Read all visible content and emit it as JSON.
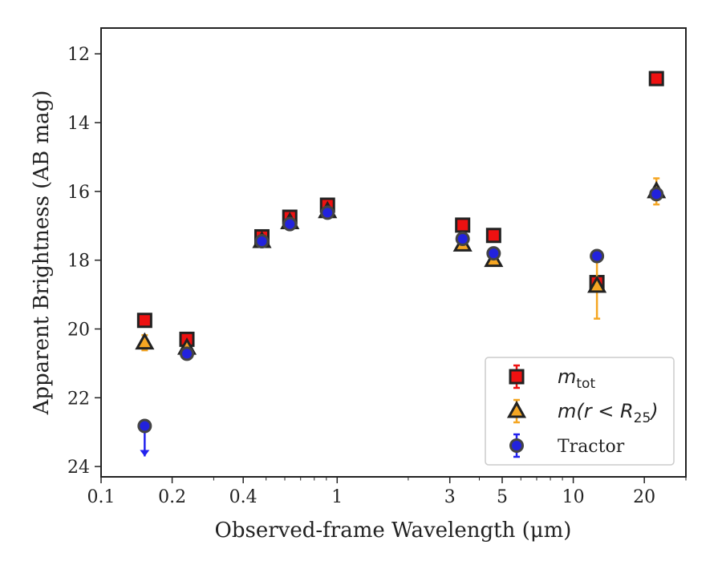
{
  "chart_data": {
    "type": "scatter",
    "title": "",
    "xlabel": "Observed-frame Wavelength (μm)",
    "ylabel": "Apparent Brightness (AB mag)",
    "xscale": "log",
    "xlim": [
      0.1,
      30
    ],
    "ylim": [
      24.3,
      11.25
    ],
    "y_inverted": true,
    "xticks": [
      0.1,
      0.2,
      0.4,
      1,
      3,
      5,
      10,
      20
    ],
    "xtick_labels": [
      "0.1",
      "0.2",
      "0.4",
      "1",
      "3",
      "5",
      "10",
      "20"
    ],
    "yticks": [
      12,
      14,
      16,
      18,
      20,
      22,
      24
    ],
    "ytick_labels": [
      "12",
      "14",
      "16",
      "18",
      "20",
      "22",
      "24"
    ],
    "grid": false,
    "legend_position": "bottom-right",
    "series": [
      {
        "name": "m_tot",
        "legend_text": "m",
        "legend_sub": "tot",
        "marker": "square",
        "face_color": "#ee1111",
        "edge_color": "#222222",
        "errorbar_color": "#ee1111",
        "points": [
          {
            "x": 0.153,
            "y": 19.75,
            "err": 0.1
          },
          {
            "x": 0.231,
            "y": 20.3,
            "err": 0.1
          },
          {
            "x": 0.48,
            "y": 17.32,
            "err": 0.1
          },
          {
            "x": 0.63,
            "y": 16.75,
            "err": 0.12
          },
          {
            "x": 0.91,
            "y": 16.4,
            "err": 0.1
          },
          {
            "x": 3.4,
            "y": 16.98,
            "err": 0.05
          },
          {
            "x": 4.6,
            "y": 17.28,
            "err": 0.05
          },
          {
            "x": 12.6,
            "y": 18.65,
            "err": 0.1
          },
          {
            "x": 22.5,
            "y": 12.72,
            "err": 0.05
          }
        ]
      },
      {
        "name": "m(r < R25)",
        "legend_text": "m(r < R",
        "legend_sub": "25",
        "legend_close": ")",
        "marker": "triangle",
        "face_color": "#f5a623",
        "edge_color": "#222222",
        "errorbar_color": "#f5a623",
        "points": [
          {
            "x": 0.153,
            "y": 20.4,
            "err": 0.22
          },
          {
            "x": 0.231,
            "y": 20.55,
            "err": 0.12
          },
          {
            "x": 0.48,
            "y": 17.45,
            "err": 0.05
          },
          {
            "x": 0.63,
            "y": 16.9,
            "err": 0.05
          },
          {
            "x": 0.91,
            "y": 16.58,
            "err": 0.05
          },
          {
            "x": 3.4,
            "y": 17.55,
            "err": 0.05
          },
          {
            "x": 4.6,
            "y": 18.0,
            "err": 0.08
          },
          {
            "x": 12.6,
            "y": 18.75,
            "err": 0.95
          },
          {
            "x": 22.5,
            "y": 16.0,
            "err": 0.38
          }
        ]
      },
      {
        "name": "Tractor",
        "legend_text": "Tractor",
        "marker": "circle",
        "face_color": "#2222dd",
        "edge_color": "#444444",
        "errorbar_color": "#2222ee",
        "points": [
          {
            "x": 0.153,
            "y": 22.82,
            "upper_limit": true
          },
          {
            "x": 0.231,
            "y": 20.72,
            "err": 0.05
          },
          {
            "x": 0.48,
            "y": 17.45,
            "err": 0.05
          },
          {
            "x": 0.63,
            "y": 16.95,
            "err": 0.05
          },
          {
            "x": 0.91,
            "y": 16.62,
            "err": 0.05
          },
          {
            "x": 3.4,
            "y": 17.38,
            "err": 0.05
          },
          {
            "x": 4.6,
            "y": 17.8,
            "err": 0.05
          },
          {
            "x": 12.6,
            "y": 17.88,
            "err": 0.05
          },
          {
            "x": 22.5,
            "y": 16.08,
            "err": 0.05
          }
        ]
      }
    ]
  }
}
